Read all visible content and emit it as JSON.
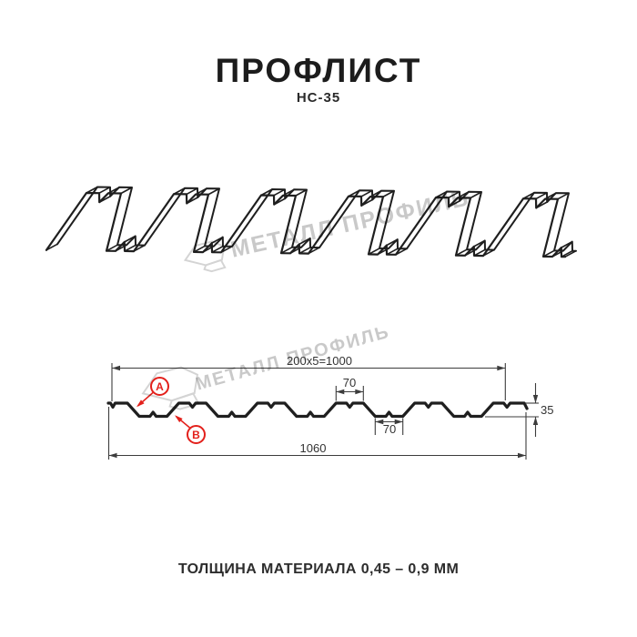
{
  "page": {
    "title": "ПРОФЛИСТ",
    "subtitle": "НС-35",
    "bottom_note": "ТОЛЩИНА МАТЕРИАЛА 0,45 – 0,9 ММ"
  },
  "watermark": {
    "text": "МЕТАЛЛ ПРОФИЛЬ"
  },
  "section": {
    "dim_working_width": "200x5=1000",
    "dim_crest_width": "70",
    "dim_valley_width": "70",
    "dim_height": "35",
    "dim_full_width": "1060",
    "label_a": "А",
    "label_b": "В"
  },
  "colors": {
    "red": "#e3201b",
    "line": "#1f1f1f",
    "dim": "#3c3c3c",
    "watermark": "#c9c9c9",
    "logo": "#d4d4d4"
  }
}
